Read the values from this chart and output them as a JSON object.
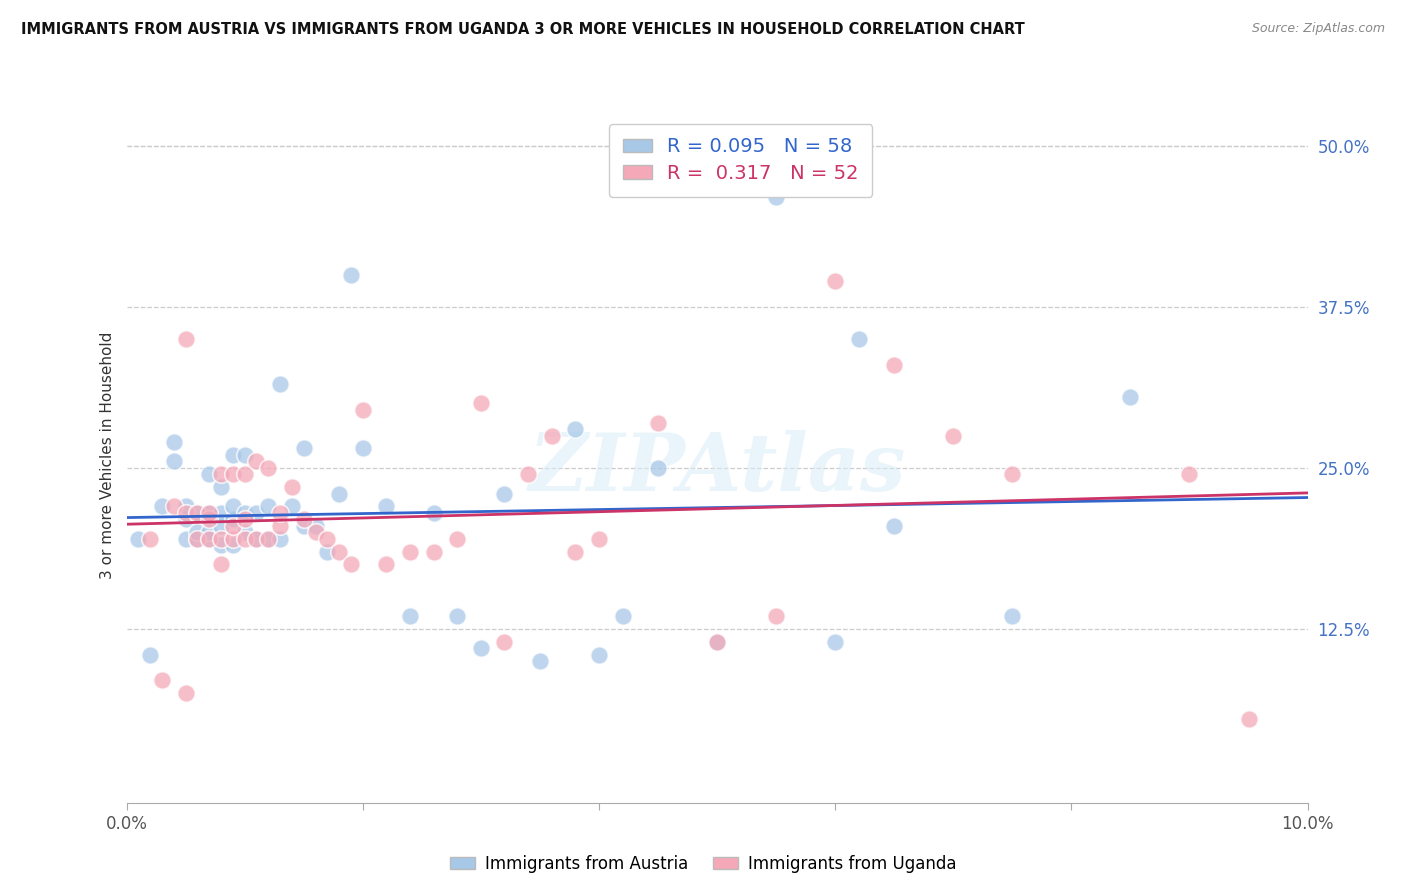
{
  "title": "IMMIGRANTS FROM AUSTRIA VS IMMIGRANTS FROM UGANDA 3 OR MORE VEHICLES IN HOUSEHOLD CORRELATION CHART",
  "source": "Source: ZipAtlas.com",
  "ylabel": "3 or more Vehicles in Household",
  "legend_austria": "Immigrants from Austria",
  "legend_uganda": "Immigrants from Uganda",
  "r_austria": 0.095,
  "n_austria": 58,
  "r_uganda": 0.317,
  "n_uganda": 52,
  "color_austria": "#a8c8e8",
  "color_uganda": "#f4a8b8",
  "color_line_austria": "#3366cc",
  "color_line_uganda": "#cc3366",
  "watermark": "ZIPAtlas",
  "xmin": 0.0,
  "xmax": 0.1,
  "ymin": -0.01,
  "ymax": 0.53,
  "austria_x": [
    0.001,
    0.002,
    0.003,
    0.004,
    0.004,
    0.005,
    0.005,
    0.005,
    0.006,
    0.006,
    0.006,
    0.007,
    0.007,
    0.007,
    0.007,
    0.008,
    0.008,
    0.008,
    0.008,
    0.009,
    0.009,
    0.009,
    0.009,
    0.01,
    0.01,
    0.01,
    0.011,
    0.011,
    0.012,
    0.012,
    0.013,
    0.013,
    0.014,
    0.015,
    0.015,
    0.016,
    0.017,
    0.018,
    0.019,
    0.02,
    0.022,
    0.024,
    0.026,
    0.028,
    0.03,
    0.032,
    0.035,
    0.038,
    0.04,
    0.042,
    0.045,
    0.05,
    0.055,
    0.06,
    0.062,
    0.065,
    0.075,
    0.085
  ],
  "austria_y": [
    0.195,
    0.105,
    0.22,
    0.255,
    0.27,
    0.195,
    0.21,
    0.22,
    0.195,
    0.2,
    0.215,
    0.195,
    0.2,
    0.215,
    0.245,
    0.19,
    0.205,
    0.215,
    0.235,
    0.19,
    0.21,
    0.22,
    0.26,
    0.2,
    0.215,
    0.26,
    0.195,
    0.215,
    0.195,
    0.22,
    0.195,
    0.315,
    0.22,
    0.205,
    0.265,
    0.205,
    0.185,
    0.23,
    0.4,
    0.265,
    0.22,
    0.135,
    0.215,
    0.135,
    0.11,
    0.23,
    0.1,
    0.28,
    0.105,
    0.135,
    0.25,
    0.115,
    0.46,
    0.115,
    0.35,
    0.205,
    0.135,
    0.305
  ],
  "uganda_x": [
    0.002,
    0.003,
    0.004,
    0.005,
    0.005,
    0.005,
    0.006,
    0.006,
    0.007,
    0.007,
    0.007,
    0.008,
    0.008,
    0.008,
    0.009,
    0.009,
    0.009,
    0.01,
    0.01,
    0.01,
    0.011,
    0.011,
    0.012,
    0.012,
    0.013,
    0.013,
    0.014,
    0.015,
    0.016,
    0.017,
    0.018,
    0.019,
    0.02,
    0.022,
    0.024,
    0.026,
    0.028,
    0.03,
    0.032,
    0.034,
    0.036,
    0.038,
    0.04,
    0.045,
    0.05,
    0.055,
    0.06,
    0.065,
    0.07,
    0.075,
    0.09,
    0.095
  ],
  "uganda_y": [
    0.195,
    0.085,
    0.22,
    0.075,
    0.215,
    0.35,
    0.195,
    0.215,
    0.195,
    0.21,
    0.215,
    0.175,
    0.195,
    0.245,
    0.195,
    0.205,
    0.245,
    0.195,
    0.21,
    0.245,
    0.195,
    0.255,
    0.195,
    0.25,
    0.205,
    0.215,
    0.235,
    0.21,
    0.2,
    0.195,
    0.185,
    0.175,
    0.295,
    0.175,
    0.185,
    0.185,
    0.195,
    0.3,
    0.115,
    0.245,
    0.275,
    0.185,
    0.195,
    0.285,
    0.115,
    0.135,
    0.395,
    0.33,
    0.275,
    0.245,
    0.245,
    0.055
  ]
}
